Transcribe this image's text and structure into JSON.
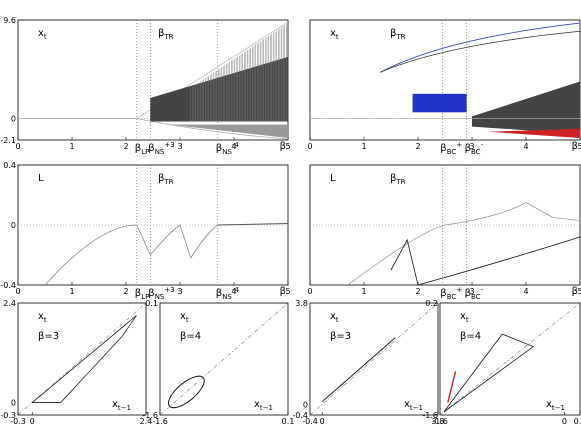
{
  "chart_data": [
    {
      "id": "p1",
      "type": "scatter",
      "xlim": [
        0,
        5
      ],
      "ylim": [
        -2.1,
        9.6
      ],
      "ylabel": "x",
      "ylabel_sub": "t",
      "yticks": [
        "9.6",
        "0",
        "-2.1"
      ],
      "xticks": [
        "0",
        "1",
        "2",
        "3",
        "4",
        "5"
      ],
      "markers": [
        {
          "x": 2.2,
          "label": "β",
          "sub": "LP"
        },
        {
          "x": 2.45,
          "label": "β",
          "sub": "NS",
          "sup": "+3"
        },
        {
          "x": 3.7,
          "label": "β",
          "sub": "NS",
          "sup": "-4"
        }
      ],
      "top_marker": {
        "label": "β",
        "sub": "TR"
      },
      "xlabel": "β"
    },
    {
      "id": "p2",
      "type": "scatter",
      "xlim": [
        0,
        5
      ],
      "ylim": [
        -2.1,
        9.6
      ],
      "ylabel": "x",
      "ylabel_sub": "t",
      "xticks": [
        "0",
        "1",
        "2",
        "3",
        "4",
        "5"
      ],
      "markers": [
        {
          "x": 2.45,
          "label": "β",
          "sub": "BC",
          "sup": "+"
        },
        {
          "x": 2.9,
          "label": "β",
          "sub": "BC",
          "sup": "-"
        }
      ],
      "top_marker": {
        "label": "β",
        "sub": "TR"
      },
      "xlabel": "β"
    },
    {
      "id": "p3",
      "type": "line",
      "xlim": [
        0,
        5
      ],
      "ylim": [
        -0.4,
        0.4
      ],
      "ylabel": "L",
      "yticks": [
        "0.4",
        "0",
        "-0.4"
      ],
      "xticks": [
        "0",
        "1",
        "2",
        "3",
        "4",
        "5"
      ],
      "markers": [
        {
          "x": 2.2,
          "label": "β",
          "sub": "LP"
        },
        {
          "x": 2.45,
          "label": "β",
          "sub": "NS",
          "sup": "+3"
        },
        {
          "x": 3.7,
          "label": "β",
          "sub": "NS",
          "sup": "-4"
        }
      ],
      "top_marker": {
        "label": "β",
        "sub": "TR"
      },
      "xlabel": "β"
    },
    {
      "id": "p4",
      "type": "line",
      "xlim": [
        0,
        5
      ],
      "ylim": [
        -0.4,
        0.4
      ],
      "ylabel": "L",
      "xticks": [
        "0",
        "1",
        "2",
        "3",
        "4",
        "5"
      ],
      "markers": [
        {
          "x": 2.45,
          "label": "β",
          "sub": "BC",
          "sup": "+"
        },
        {
          "x": 2.9,
          "label": "β",
          "sub": "BC",
          "sup": "-"
        }
      ],
      "top_marker": {
        "label": "β",
        "sub": "TR"
      },
      "xlabel": "β"
    },
    {
      "id": "p5",
      "type": "scatter",
      "xlim": [
        -0.3,
        2.4
      ],
      "ylim": [
        -0.3,
        2.4
      ],
      "ylabel": "x",
      "ylabel_sub": "t",
      "param": "β=3",
      "xlabel": "x",
      "xlabel_sub": "t−1",
      "yticks": [
        "2.4",
        "0",
        "-0.3"
      ],
      "xticks": [
        "-0.3",
        "0",
        "2.4"
      ]
    },
    {
      "id": "p6",
      "type": "scatter",
      "xlim": [
        -1.6,
        0.1
      ],
      "ylim": [
        -1.6,
        0.1
      ],
      "ylabel": "x",
      "ylabel_sub": "t",
      "param": "β=4",
      "xlabel": "x",
      "xlabel_sub": "t−1",
      "yticks": [
        "0.1",
        "-1.6"
      ],
      "xticks": [
        "-1.6",
        "0.1"
      ]
    },
    {
      "id": "p7",
      "type": "scatter",
      "xlim": [
        -0.4,
        3.8
      ],
      "ylim": [
        -0.4,
        3.8
      ],
      "ylabel": "x",
      "ylabel_sub": "t",
      "param": "β=3",
      "xlabel": "x",
      "xlabel_sub": "t−1",
      "yticks": [
        "3.8",
        "0",
        "-0.4"
      ],
      "xticks": [
        "-0.4",
        "0",
        "3.8"
      ]
    },
    {
      "id": "p8",
      "type": "scatter",
      "xlim": [
        -1.6,
        0.2
      ],
      "ylim": [
        -1.6,
        0.2
      ],
      "ylabel": "x",
      "ylabel_sub": "t",
      "param": "β=4",
      "xlabel": "x",
      "xlabel_sub": "t−1",
      "yticks": [
        "0.2",
        "-1.6"
      ],
      "xticks": [
        "-1.6",
        "0",
        "0.2"
      ]
    }
  ]
}
